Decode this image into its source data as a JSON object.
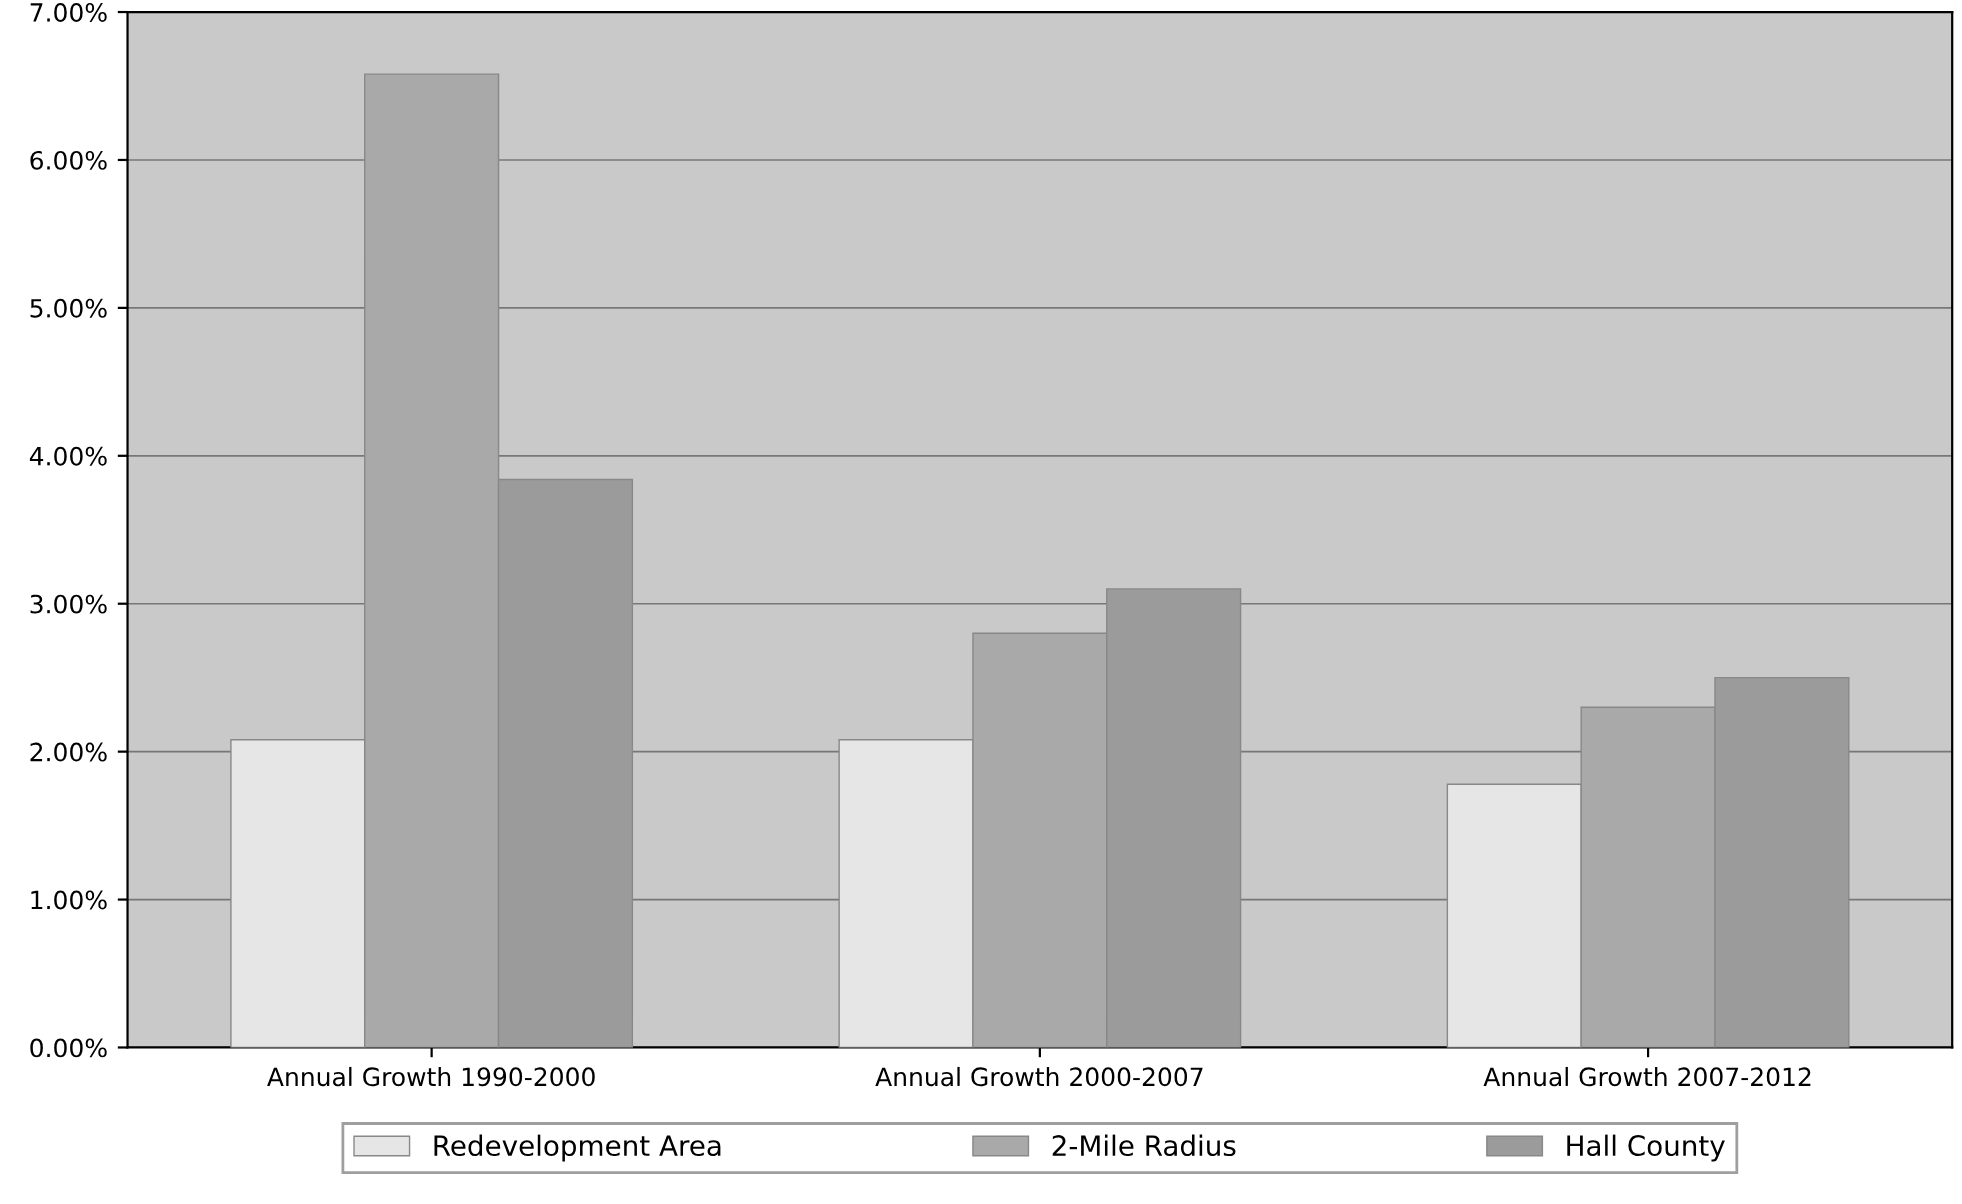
{
  "chart_data": {
    "type": "bar",
    "categories": [
      "Annual Growth 1990-2000",
      "Annual Growth 2000-2007",
      "Annual Growth 2007-2012"
    ],
    "series": [
      {
        "name": "Redevelopment Area",
        "color": "#e6e6e6",
        "values": [
          2.08,
          2.08,
          1.78
        ]
      },
      {
        "name": "2-Mile Radius",
        "color": "#a9a9a9",
        "values": [
          6.58,
          2.8,
          2.3
        ]
      },
      {
        "name": "Hall County",
        "color": "#9b9b9b",
        "values": [
          3.84,
          3.1,
          2.5
        ]
      }
    ],
    "ylim": [
      0,
      7
    ],
    "yticks": [
      {
        "value": 0,
        "label": "0.00%"
      },
      {
        "value": 1,
        "label": "1.00%"
      },
      {
        "value": 2,
        "label": "2.00%"
      },
      {
        "value": 3,
        "label": "3.00%"
      },
      {
        "value": 4,
        "label": "4.00%"
      },
      {
        "value": 5,
        "label": "5.00%"
      },
      {
        "value": 6,
        "label": "6.00%"
      },
      {
        "value": 7,
        "label": "7.00%"
      }
    ],
    "grid": "y",
    "legend": "bottom"
  }
}
